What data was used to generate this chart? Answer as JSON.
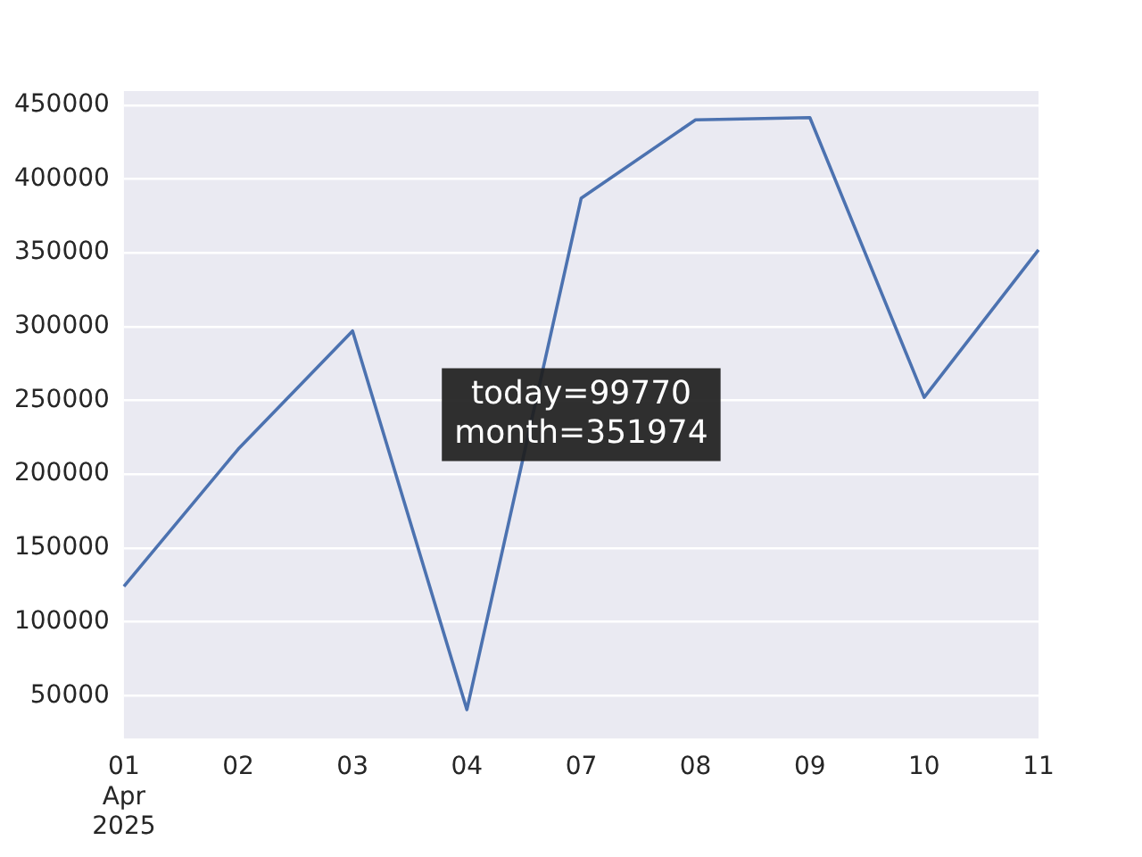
{
  "chart_data": {
    "type": "line",
    "categories": [
      "01\nApr\n2025",
      "02",
      "03",
      "04",
      "07",
      "08",
      "09",
      "10",
      "11"
    ],
    "series": [
      {
        "color": "#4c72b0",
        "values": [
          124000,
          217000,
          297000,
          40500,
          387000,
          440000,
          441500,
          252000,
          351974
        ]
      }
    ],
    "ylim": [
      21000,
      459500
    ],
    "yticks": [
      50000,
      100000,
      150000,
      200000,
      250000,
      300000,
      350000,
      400000,
      450000
    ],
    "grid": "y",
    "legend": false,
    "marker": "none",
    "line_style": "solid",
    "annotations": [
      "today=99770\nmonth=351974"
    ]
  }
}
